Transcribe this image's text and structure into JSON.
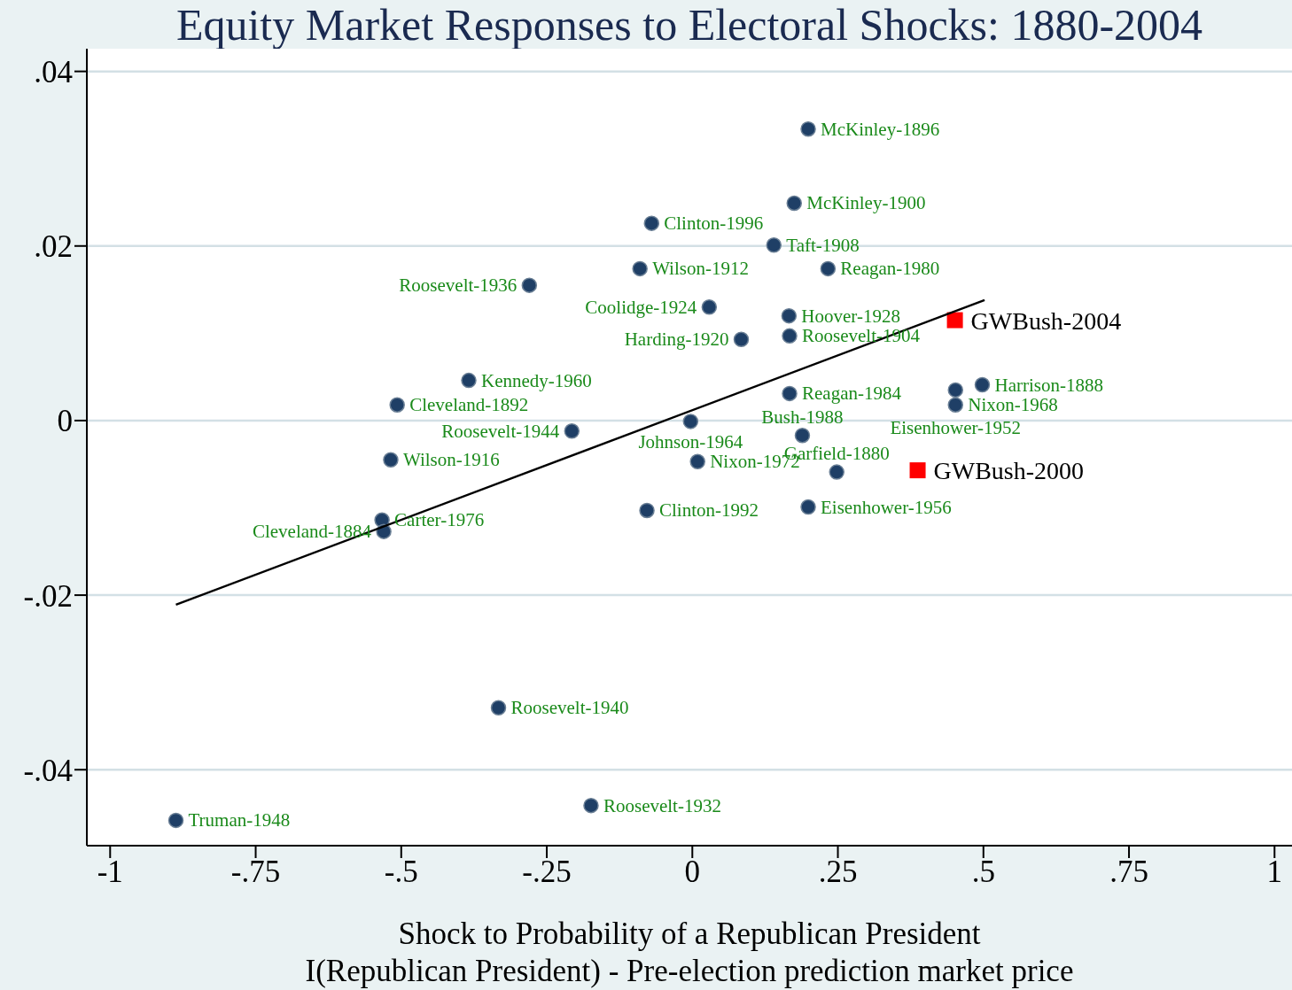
{
  "chart_data": {
    "type": "scatter",
    "title": "Equity Market Responses to Electoral Shocks: 1880-2004",
    "xlabel": "Shock to Probability of a Republican President\nI(Republican President) - Pre-election prediction market price",
    "xlim": [
      -1.04,
      1.03
    ],
    "ylim": [
      -0.0487,
      0.0426
    ],
    "xticks": [
      {
        "value": -1,
        "label": "-1"
      },
      {
        "value": -0.75,
        "label": "-.75"
      },
      {
        "value": -0.5,
        "label": "-.5"
      },
      {
        "value": -0.25,
        "label": "-.25"
      },
      0,
      {
        "value": 0.25,
        "label": ".25"
      },
      {
        "value": 0.5,
        "label": ".5"
      },
      {
        "value": 0.75,
        "label": ".75"
      },
      1
    ],
    "yticks": [
      {
        "value": -0.04,
        "label": "-.04"
      },
      {
        "value": -0.02,
        "label": "-.02"
      },
      0,
      {
        "value": 0.02,
        "label": ".02"
      },
      {
        "value": 0.04,
        "label": ".04"
      }
    ],
    "grid": "y",
    "legend": false,
    "series": [
      {
        "type": "scatter",
        "marker": "circle",
        "color": "#1f3f66",
        "x": [
          0.199,
          0.175,
          -0.07,
          0.14,
          0.233,
          -0.09,
          -0.28,
          0.029,
          0.166,
          0.084,
          0.167,
          -0.384,
          -0.507,
          0.167,
          0.498,
          0.452,
          0.452,
          -0.003,
          -0.207,
          0.189,
          -0.518,
          0.009,
          0.248,
          -0.078,
          0.199,
          -0.533,
          -0.53,
          -0.333,
          -0.174,
          -0.887
        ],
        "values": [
          0.0334,
          0.0249,
          0.0226,
          0.0201,
          0.0174,
          0.0174,
          0.0155,
          0.013,
          0.012,
          0.0093,
          0.0097,
          0.0046,
          0.0018,
          0.0031,
          0.0041,
          0.0035,
          0.0018,
          -0.0001,
          -0.0012,
          -0.0017,
          -0.0045,
          -0.0047,
          -0.0059,
          -0.0103,
          -0.0099,
          -0.0114,
          -0.0127,
          -0.0329,
          -0.0441,
          -0.0458
        ],
        "value_labels": [
          "McKinley-1896",
          "McKinley-1900",
          "Clinton-1996",
          "Taft-1908",
          "Reagan-1980",
          "Wilson-1912",
          "Roosevelt-1936",
          "Coolidge-1924",
          "Hoover-1928",
          "Harding-1920",
          "Roosevelt-1904",
          "Kennedy-1960",
          "Cleveland-1892",
          "Reagan-1984",
          "Harrison-1888",
          "Eisenhower-1952",
          "Nixon-1968",
          "Johnson-1964",
          "Roosevelt-1944",
          "Bush-1988",
          "Wilson-1916",
          "Nixon-1972",
          "Garfield-1880",
          "Clinton-1992",
          "Eisenhower-1956",
          "Carter-1976",
          "Cleveland-1884",
          "Roosevelt-1940",
          "Roosevelt-1932",
          "Truman-1948"
        ]
      },
      {
        "type": "scatter",
        "marker": "square",
        "color": "#ff0000",
        "x": [
          0.451,
          0.387
        ],
        "values": [
          0.0115,
          -0.0057
        ],
        "value_labels": [
          "GWBush-2004",
          "GWBush-2000"
        ]
      },
      {
        "type": "line",
        "marker": "none",
        "line_style": "solid",
        "color": "#000000",
        "x": [
          -0.887,
          0.502
        ],
        "values": [
          -0.0211,
          0.0138
        ]
      }
    ]
  }
}
